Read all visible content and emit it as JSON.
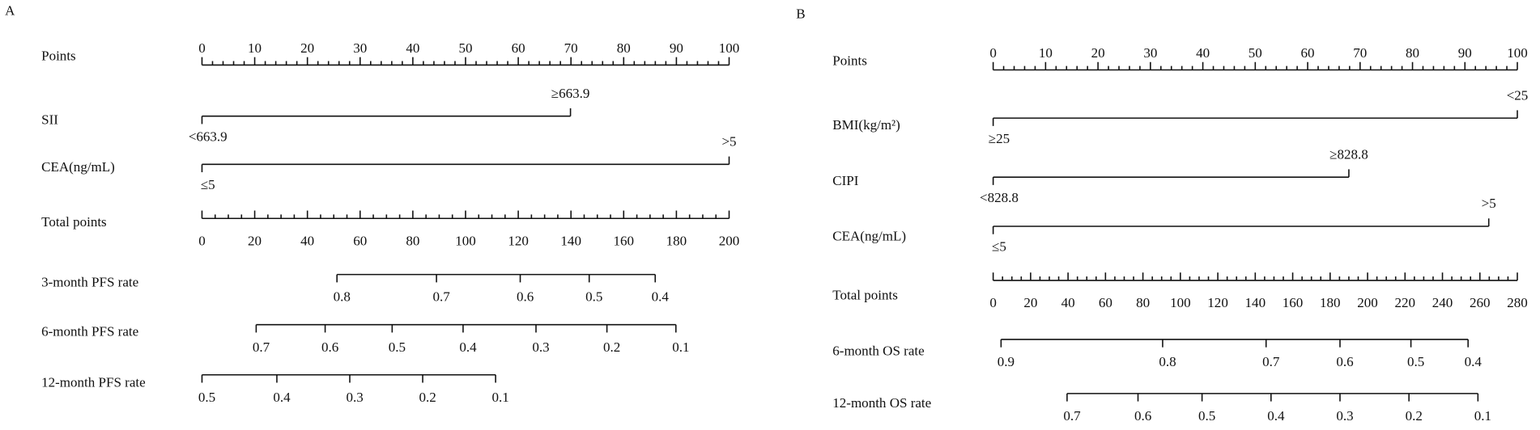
{
  "panels": [
    {
      "label": "A",
      "points_axis": {
        "title": "Points",
        "ticks": [
          0,
          10,
          20,
          30,
          40,
          50,
          60,
          70,
          80,
          90,
          100
        ]
      },
      "variables": [
        {
          "name": "SII",
          "levels": [
            "<663.9",
            "≥663.9"
          ]
        },
        {
          "name": "CEA(ng/mL)",
          "levels": [
            "≤5",
            ">5"
          ]
        }
      ],
      "total_axis": {
        "title": "Total points",
        "ticks": [
          0,
          20,
          40,
          60,
          80,
          100,
          120,
          140,
          160,
          180,
          200
        ]
      },
      "outcomes": [
        {
          "name": "3-month PFS rate",
          "ticks": [
            0.8,
            0.7,
            0.6,
            0.5,
            0.4
          ]
        },
        {
          "name": "6-month PFS rate",
          "ticks": [
            0.7,
            0.6,
            0.5,
            0.4,
            0.3,
            0.2,
            0.1
          ]
        },
        {
          "name": "12-month PFS rate",
          "ticks": [
            0.5,
            0.4,
            0.3,
            0.2,
            0.1
          ]
        }
      ]
    },
    {
      "label": "B",
      "points_axis": {
        "title": "Points",
        "ticks": [
          0,
          10,
          20,
          30,
          40,
          50,
          60,
          70,
          80,
          90,
          100
        ]
      },
      "variables": [
        {
          "name": "BMI(kg/m²)",
          "levels": [
            "≥25",
            "<25"
          ]
        },
        {
          "name": "CIPI",
          "levels": [
            "<828.8",
            "≥828.8"
          ]
        },
        {
          "name": "CEA(ng/mL)",
          "levels": [
            "≤5",
            ">5"
          ]
        }
      ],
      "total_axis": {
        "title": "Total points",
        "ticks": [
          0,
          20,
          40,
          60,
          80,
          100,
          120,
          140,
          160,
          180,
          200,
          220,
          240,
          260,
          280
        ]
      },
      "outcomes": [
        {
          "name": "6-month OS rate",
          "ticks": [
            0.9,
            0.8,
            0.7,
            0.6,
            0.5,
            0.4
          ]
        },
        {
          "name": "12-month OS rate",
          "ticks": [
            0.7,
            0.6,
            0.5,
            0.4,
            0.3,
            0.2,
            0.1
          ]
        }
      ]
    }
  ]
}
